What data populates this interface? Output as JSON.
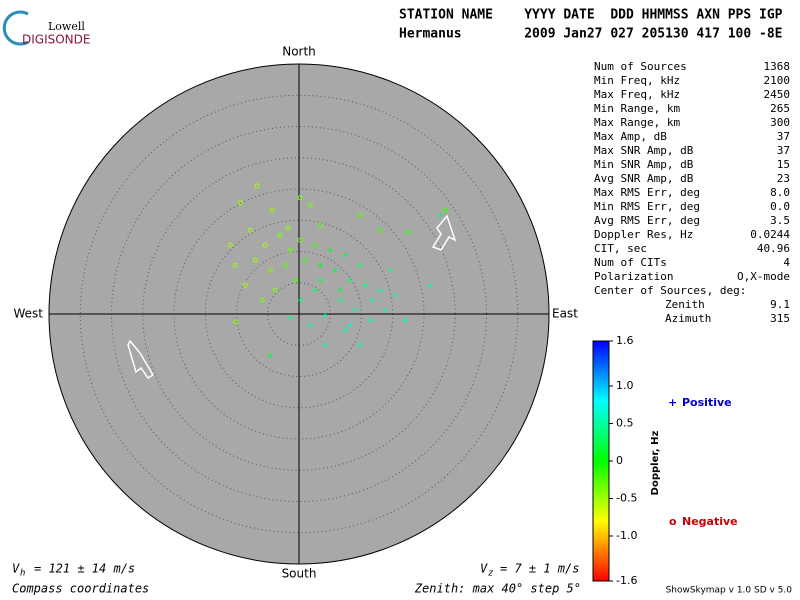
{
  "logo": {
    "top": "Lowell",
    "bottom": "DIGISONDE"
  },
  "header": {
    "labels": "STATION NAME    YYYY DATE  DDD HHMMSS AXN PPS IGP",
    "values": "Hermanus        2009 Jan27 027 205130 417 100 -8E"
  },
  "stats": [
    [
      "Num of Sources",
      "1368"
    ],
    [
      "Min Freq, kHz",
      "2100"
    ],
    [
      "Max Freq, kHz",
      "2450"
    ],
    [
      "Min Range, km",
      "265"
    ],
    [
      "Max Range, km",
      "300"
    ],
    [
      "Max Amp, dB",
      "37"
    ],
    [
      "Max SNR Amp, dB",
      "37"
    ],
    [
      "Min SNR Amp, dB",
      "15"
    ],
    [
      "Avg SNR Amp, dB",
      "23"
    ],
    [
      "Max RMS Err, deg",
      "8.0"
    ],
    [
      "Min RMS Err, deg",
      "0.0"
    ],
    [
      "Avg RMS Err, deg",
      "3.5"
    ],
    [
      "Doppler Res, Hz",
      "0.0244"
    ],
    [
      "CIT, sec",
      "40.96"
    ],
    [
      "Num of CITs",
      "4"
    ],
    [
      "Polarization",
      "O,X-mode"
    ]
  ],
  "center": {
    "label": "Center of Sources, deg:",
    "zenith": [
      "Zenith",
      "9.1"
    ],
    "azimuth": [
      "Azimuth",
      "315"
    ]
  },
  "compass": {
    "north": "North",
    "south": "South",
    "east": "East",
    "west": "West"
  },
  "colorbar": {
    "label": "Doppler, Hz",
    "lim": [
      -1.6,
      1.6
    ],
    "ticks": [
      1.6,
      {
        "value": 1,
        "label": "1.0"
      },
      0.5,
      0,
      -0.5,
      {
        "value": -1,
        "label": "-1.0"
      },
      -1.6
    ]
  },
  "legend": {
    "positive": {
      "symbol": "+",
      "text": "Positive"
    },
    "negative": {
      "symbol": "o",
      "text": "Negative"
    }
  },
  "footer": {
    "vh": {
      "symbol": "V",
      "sub": "h",
      "text": "= 121 ± 14 m/s"
    },
    "vz": {
      "symbol": "V",
      "sub": "z",
      "text": "= 7 ± 1 m/s"
    },
    "coords": "Compass coordinates",
    "zenith_note": "Zenith: max 40°  step 5°",
    "version": "ShowSkymap v 1.0   SD v 5.0"
  },
  "skymap": {
    "zenith_max": 40,
    "zenith_step": 5,
    "sources": [
      {
        "x": -6.7,
        "y": 20.5,
        "doppler": -0.5
      },
      {
        "x": -9.4,
        "y": 17.8,
        "doppler": -0.5
      },
      {
        "x": -4.3,
        "y": 16.6,
        "doppler": -0.5
      },
      {
        "x": 0.2,
        "y": 18.6,
        "doppler": -0.4
      },
      {
        "x": -7.8,
        "y": 13.4,
        "doppler": -0.5
      },
      {
        "x": -5.4,
        "y": 11.0,
        "doppler": -0.5
      },
      {
        "x": -3.0,
        "y": 12.6,
        "doppler": -0.4
      },
      {
        "x": -1.4,
        "y": 10.2,
        "doppler": -0.3
      },
      {
        "x": -10.2,
        "y": 7.8,
        "doppler": -0.5
      },
      {
        "x": -7.0,
        "y": 8.6,
        "doppler": -0.5
      },
      {
        "x": -4.6,
        "y": 7.0,
        "doppler": -0.4
      },
      {
        "x": -2.2,
        "y": 7.8,
        "doppler": -0.3
      },
      {
        "x": -0.6,
        "y": 5.4,
        "doppler": -0.2
      },
      {
        "x": -8.6,
        "y": 4.6,
        "doppler": -0.5
      },
      {
        "x": -3.8,
        "y": 3.8,
        "doppler": -0.4
      },
      {
        "x": -10.1,
        "y": -1.3,
        "doppler": -0.4
      },
      {
        "x": 1.8,
        "y": 17.4,
        "doppler": -0.4
      },
      {
        "x": 3.4,
        "y": 14.2,
        "doppler": -0.3
      },
      {
        "x": -5.9,
        "y": 2.2,
        "doppler": -0.4
      },
      {
        "x": 0.2,
        "y": 11.8,
        "doppler": -0.3
      },
      {
        "x": -11.0,
        "y": 11.0,
        "doppler": -0.5
      },
      {
        "x": -1.8,
        "y": 13.8,
        "doppler": -0.4
      },
      {
        "x": 1.0,
        "y": 8.6,
        "doppler": -0.2
      },
      {
        "x": 2.6,
        "y": 11.0,
        "doppler": -0.2
      },
      {
        "x": 9.8,
        "y": 15.8,
        "doppler": -0.3
      },
      {
        "x": 23.4,
        "y": 16.6,
        "doppler": -0.2
      },
      {
        "x": 17.6,
        "y": 13.1,
        "doppler": -0.1
      },
      {
        "x": 13.0,
        "y": 13.4,
        "doppler": -0.2
      },
      {
        "x": 3.4,
        "y": 7.8,
        "doppler": 0.1
      },
      {
        "x": 5.8,
        "y": 7.0,
        "doppler": 0.2
      },
      {
        "x": 8.2,
        "y": 5.4,
        "doppler": 0.3
      },
      {
        "x": 10.6,
        "y": 4.6,
        "doppler": 0.4
      },
      {
        "x": 13.0,
        "y": 3.8,
        "doppler": 0.5
      },
      {
        "x": 15.4,
        "y": 3.0,
        "doppler": 0.5
      },
      {
        "x": 6.6,
        "y": 2.2,
        "doppler": 0.4
      },
      {
        "x": 9.0,
        "y": 0.6,
        "doppler": 0.6
      },
      {
        "x": 11.4,
        "y": -1.0,
        "doppler": 0.6
      },
      {
        "x": 4.2,
        "y": -0.2,
        "doppler": 0.5
      },
      {
        "x": 1.8,
        "y": -1.8,
        "doppler": 0.6
      },
      {
        "x": 7.4,
        "y": -2.6,
        "doppler": 0.6
      },
      {
        "x": 9.8,
        "y": -5.0,
        "doppler": 0.6
      },
      {
        "x": 4.2,
        "y": -5.0,
        "doppler": 0.5
      },
      {
        "x": -4.6,
        "y": -6.6,
        "doppler": 0.2
      },
      {
        "x": 21.0,
        "y": 4.6,
        "doppler": 0.5
      },
      {
        "x": 17.0,
        "y": -1.0,
        "doppler": 0.6
      },
      {
        "x": 5.0,
        "y": 10.2,
        "doppler": 0.1
      },
      {
        "x": 7.4,
        "y": 9.4,
        "doppler": 0.2
      },
      {
        "x": 9.8,
        "y": 7.8,
        "doppler": 0.3
      },
      {
        "x": 14.6,
        "y": 7.0,
        "doppler": 0.4
      },
      {
        "x": 2.6,
        "y": 3.8,
        "doppler": 0.3
      },
      {
        "x": 0.2,
        "y": 2.2,
        "doppler": 0.4
      },
      {
        "x": 13.8,
        "y": 0.6,
        "doppler": 0.6
      },
      {
        "x": 8.2,
        "y": -1.8,
        "doppler": 0.7
      },
      {
        "x": 6.6,
        "y": 3.8,
        "doppler": 0.2
      },
      {
        "x": 11.7,
        "y": 2.2,
        "doppler": 0.5
      },
      {
        "x": 3.4,
        "y": 5.4,
        "doppler": 0.2
      },
      {
        "x": 22.6,
        "y": 15.8,
        "doppler": 0.3
      },
      {
        "x": -1.4,
        "y": -0.6,
        "doppler": 0.4
      }
    ]
  }
}
